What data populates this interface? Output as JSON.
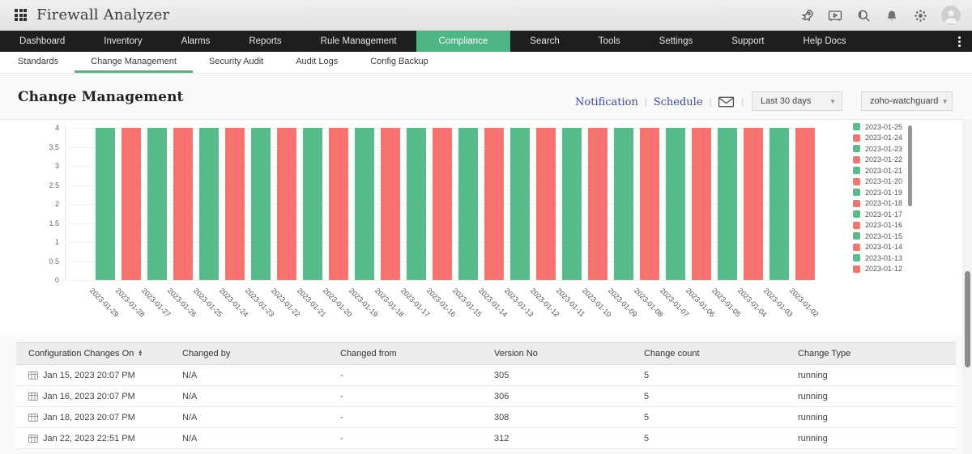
{
  "topbar": {
    "title": "Firewall Analyzer"
  },
  "nav": {
    "items": [
      "Dashboard",
      "Inventory",
      "Alarms",
      "Reports",
      "Rule Management",
      "Compliance",
      "Search",
      "Tools",
      "Settings",
      "Support",
      "Help Docs"
    ],
    "active": "Compliance"
  },
  "subnav": {
    "items": [
      "Standards",
      "Change Management",
      "Security Audit",
      "Audit Logs",
      "Config Backup"
    ],
    "active": "Change Management"
  },
  "page": {
    "title": "Change Management",
    "separator": "|",
    "links": [
      "Notification",
      "Schedule"
    ],
    "range_dropdown": {
      "value": "Last 30 days"
    },
    "device_dropdown": {
      "value": "zoho-watchguard"
    }
  },
  "chart_data": {
    "type": "bar",
    "categories": [
      "2023-01-29",
      "2023-01-28",
      "2023-01-27",
      "2023-01-26",
      "2023-01-25",
      "2023-01-24",
      "2023-01-23",
      "2023-01-22",
      "2023-01-21",
      "2023-01-20",
      "2023-01-19",
      "2023-01-18",
      "2023-01-17",
      "2023-01-16",
      "2023-01-15",
      "2023-01-14",
      "2023-01-13",
      "2023-01-12",
      "2023-01-11",
      "2023-01-10",
      "2023-01-09",
      "2023-01-08",
      "2023-01-07",
      "2023-01-06",
      "2023-01-05",
      "2023-01-04",
      "2023-01-03",
      "2023-01-02"
    ],
    "values": [
      4,
      4,
      4,
      4,
      4,
      4,
      4,
      4,
      4,
      4,
      4,
      4,
      4,
      4,
      4,
      4,
      4,
      4,
      4,
      4,
      4,
      4,
      4,
      4,
      4,
      4,
      4,
      4
    ],
    "color_pattern": "alternate",
    "colors": [
      "#57bb8a",
      "#f8736f"
    ],
    "ylim": [
      0,
      4
    ],
    "yticks": [
      0,
      0.5,
      1,
      1.5,
      2,
      2.5,
      3,
      3.5,
      4
    ],
    "grid": true,
    "legend_position": "right",
    "legend": [
      {
        "label": "2023-01-25",
        "color": "#57bb8a"
      },
      {
        "label": "2023-01-24",
        "color": "#f8736f"
      },
      {
        "label": "2023-01-23",
        "color": "#57bb8a"
      },
      {
        "label": "2023-01-22",
        "color": "#f8736f"
      },
      {
        "label": "2023-01-21",
        "color": "#57bb8a"
      },
      {
        "label": "2023-01-20",
        "color": "#f8736f"
      },
      {
        "label": "2023-01-19",
        "color": "#57bb8a"
      },
      {
        "label": "2023-01-18",
        "color": "#f8736f"
      },
      {
        "label": "2023-01-17",
        "color": "#57bb8a"
      },
      {
        "label": "2023-01-16",
        "color": "#f8736f"
      },
      {
        "label": "2023-01-15",
        "color": "#57bb8a"
      },
      {
        "label": "2023-01-14",
        "color": "#f8736f"
      },
      {
        "label": "2023-01-13",
        "color": "#57bb8a"
      },
      {
        "label": "2023-01-12",
        "color": "#f8736f"
      }
    ]
  },
  "table": {
    "columns": [
      "Configuration Changes On",
      "Changed by",
      "Changed from",
      "Version No",
      "Change count",
      "Change Type"
    ],
    "sort_column": "Configuration Changes On",
    "rows": [
      [
        "Jan 15, 2023 20:07 PM",
        "N/A",
        "-",
        "305",
        "5",
        "running"
      ],
      [
        "Jan 16, 2023 20:07 PM",
        "N/A",
        "-",
        "306",
        "5",
        "running"
      ],
      [
        "Jan 18, 2023 20:07 PM",
        "N/A",
        "-",
        "308",
        "5",
        "running"
      ],
      [
        "Jan 22, 2023 22:51 PM",
        "N/A",
        "-",
        "312",
        "5",
        "running"
      ]
    ]
  }
}
